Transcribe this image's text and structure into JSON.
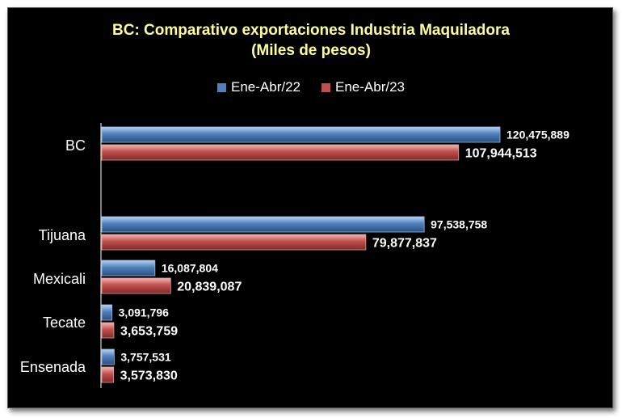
{
  "colors": {
    "series_a": "#4f81bd",
    "series_b": "#c0504d",
    "title": "#ffff99",
    "background": "#000000"
  },
  "chart_data": {
    "type": "bar",
    "orientation": "horizontal",
    "title": "BC: Comparativo exportaciones Industria Maquiladora",
    "subtitle": "(Miles de pesos)",
    "categories": [
      "BC",
      "Tijuana",
      "Mexicali",
      "Tecate",
      "Ensenada"
    ],
    "series": [
      {
        "name": "Ene-Abr/22",
        "values": [
          120475889,
          97538758,
          16087804,
          3091796,
          3757531
        ],
        "labels": [
          "120,475,889",
          "97,538,758",
          "16,087,804",
          "3,091,796",
          "3,757,531"
        ]
      },
      {
        "name": "Ene-Abr/23",
        "values": [
          107944513,
          79877837,
          20839087,
          3653759,
          3573830
        ],
        "labels": [
          "107,944,513",
          "79,877,837",
          "20,839,087",
          "3,653,759",
          "3,573,830"
        ]
      }
    ],
    "xlim": [
      0,
      128000000
    ],
    "legend_position": "top",
    "grid": false
  }
}
